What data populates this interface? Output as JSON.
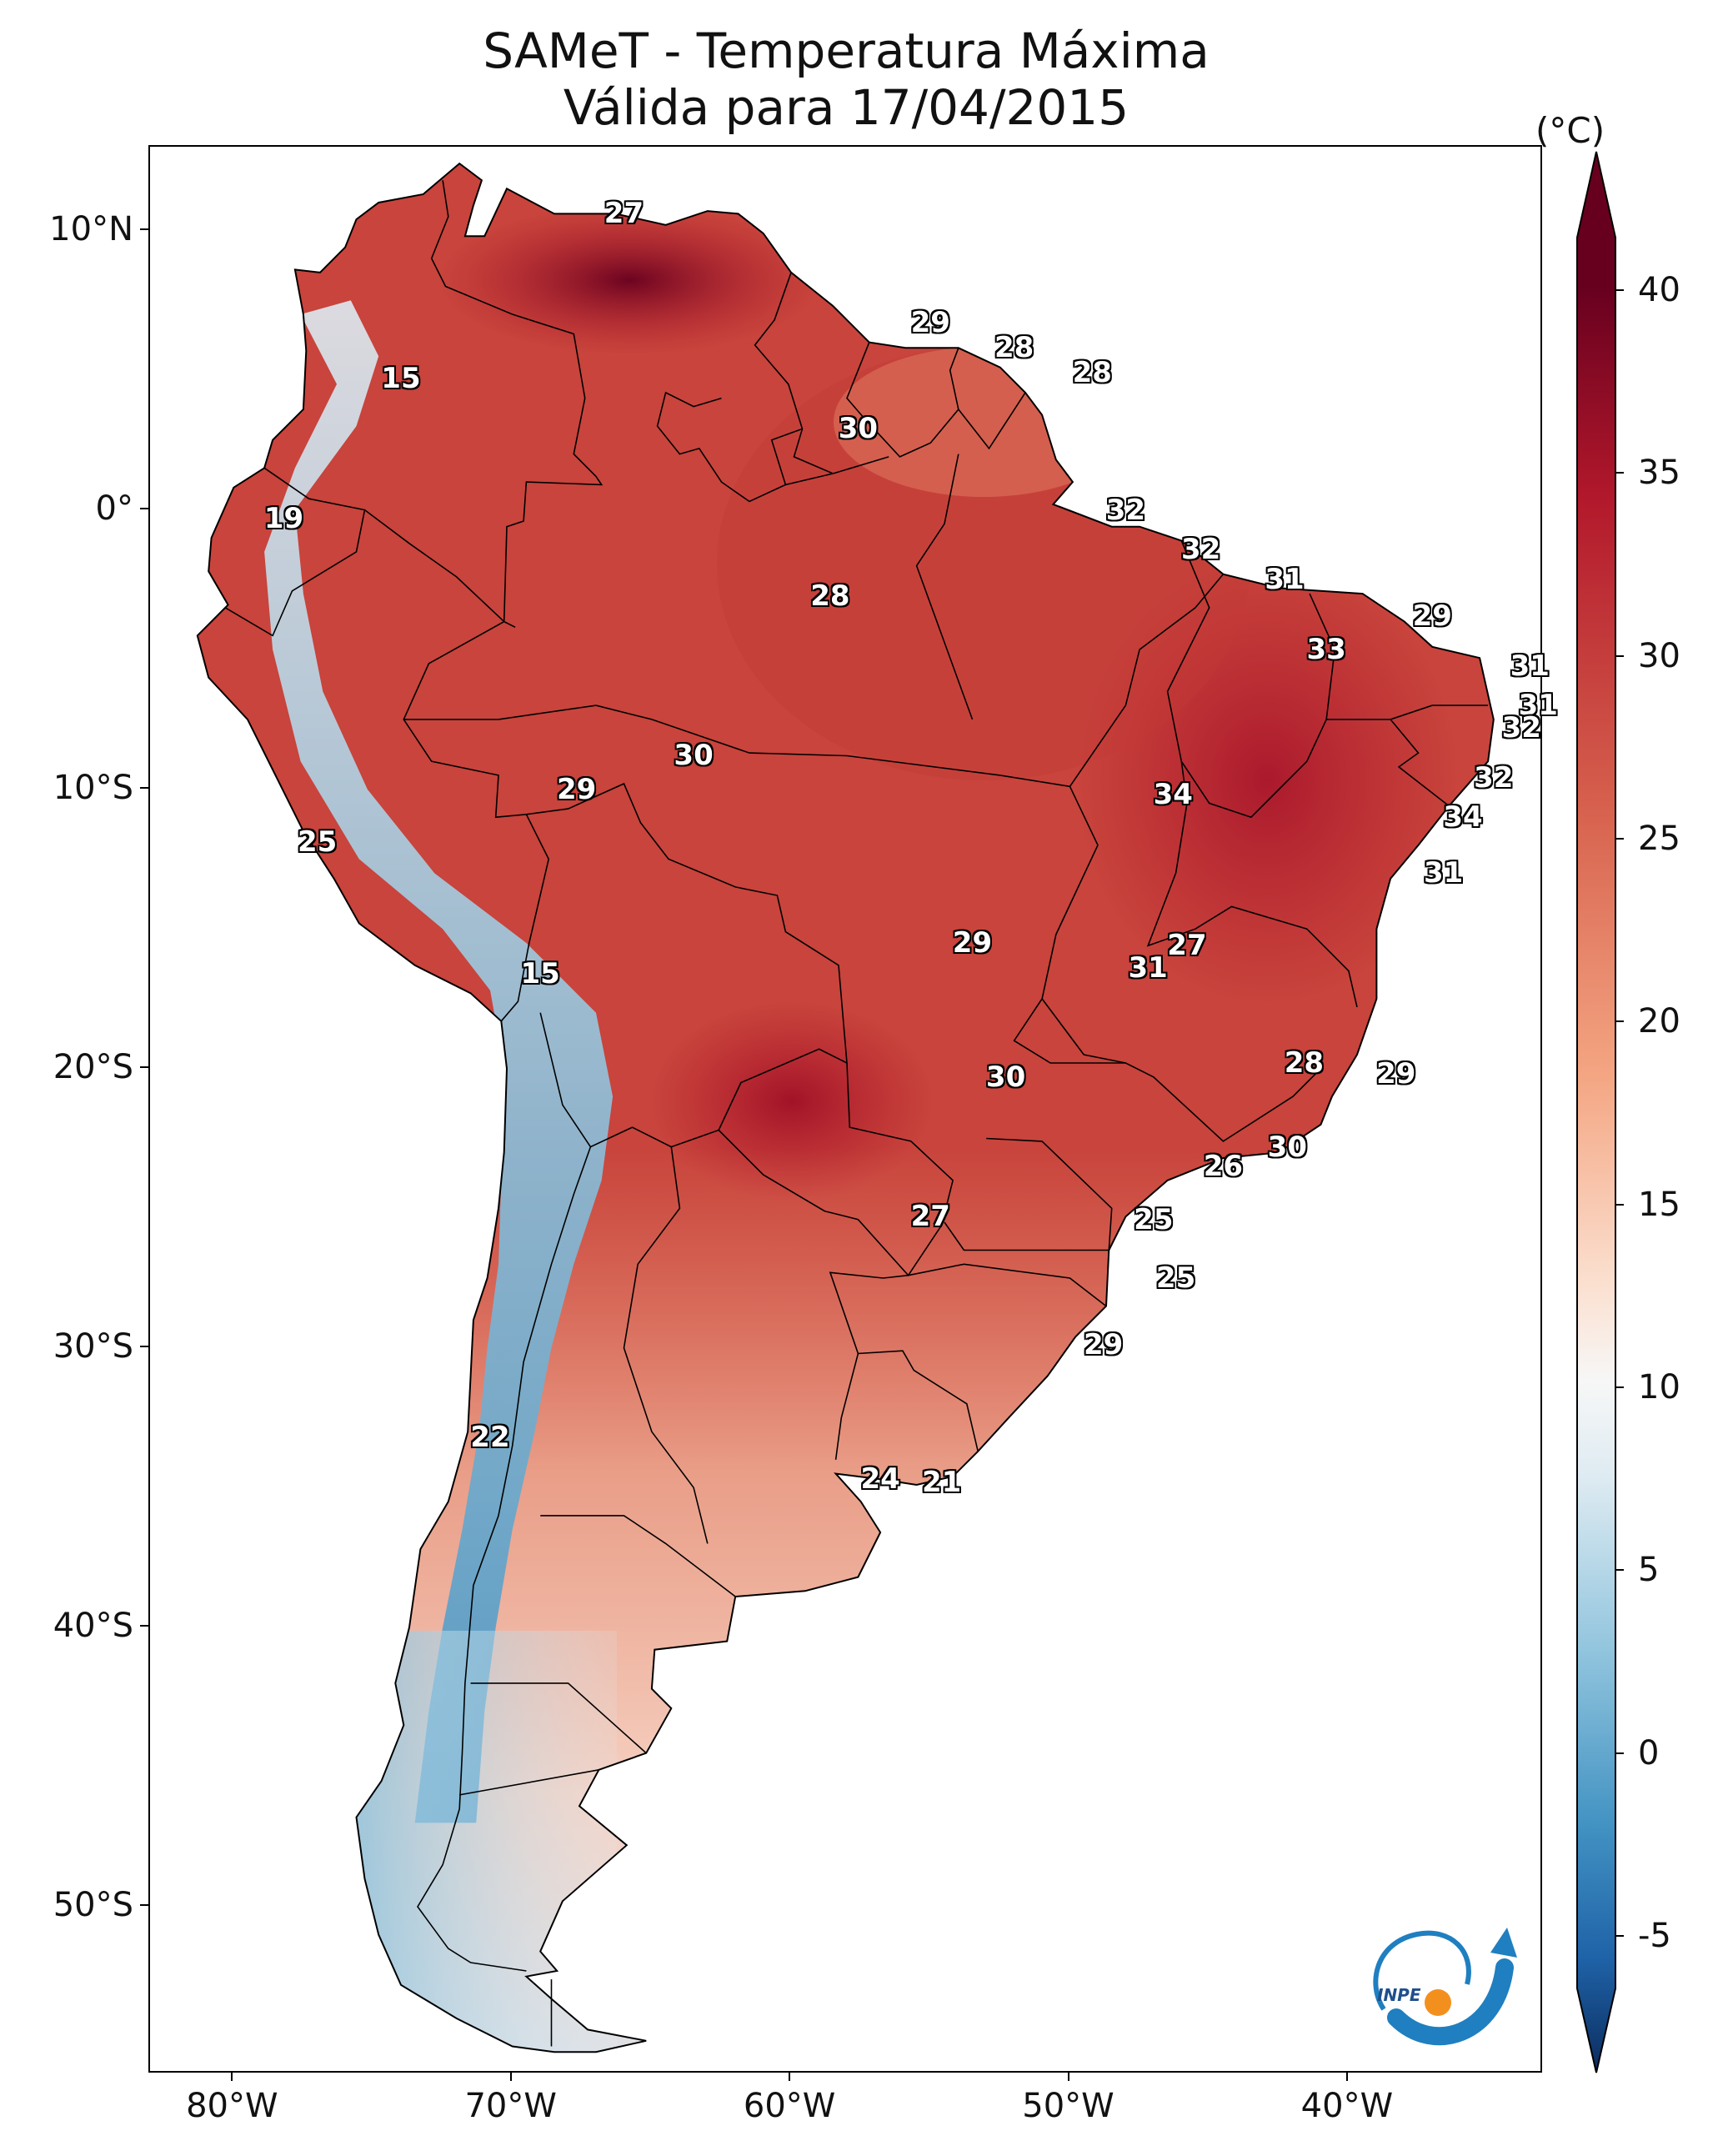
{
  "title": {
    "line1": "SAMeT - Temperatura Máxima",
    "line2": "Válida para 17/04/2015"
  },
  "colorbar": {
    "unit": "(°C)",
    "ticks": [
      "40",
      "35",
      "30",
      "25",
      "20",
      "15",
      "10",
      "5",
      "0",
      "-5"
    ],
    "tick_values": [
      40,
      35,
      30,
      25,
      20,
      15,
      10,
      5,
      0,
      -5
    ],
    "range": [
      -5,
      40
    ],
    "colors": {
      "c_neg5": "#0b2c5e",
      "c_0": "#1f63a8",
      "c_5": "#4393c3",
      "c_10": "#92c5de",
      "c_15": "#deebf2",
      "c_18": "#f7f7f7",
      "c_20": "#fbe0d0",
      "c_25": "#f4a582",
      "c_30": "#d6604d",
      "c_35": "#b2182b",
      "c_40": "#67001f"
    }
  },
  "axes": {
    "lat_labels": [
      "10°N",
      "0°",
      "10°S",
      "20°S",
      "30°S",
      "40°S",
      "50°S"
    ],
    "lat_values": [
      10,
      0,
      -10,
      -20,
      -30,
      -40,
      -50
    ],
    "lon_labels": [
      "80°W",
      "70°W",
      "60°W",
      "50°W",
      "40°W"
    ],
    "lon_values": [
      -80,
      -70,
      -60,
      -50,
      -40
    ],
    "lon_range": [
      -83,
      -33
    ],
    "lat_range": [
      -56,
      13
    ]
  },
  "station_values": [
    {
      "label": "27",
      "lon": -66.0,
      "lat": 10.6
    },
    {
      "label": "29",
      "lon": -55.0,
      "lat": 6.7
    },
    {
      "label": "28",
      "lon": -52.0,
      "lat": 5.8
    },
    {
      "label": "28",
      "lon": -49.2,
      "lat": 4.9
    },
    {
      "label": "15",
      "lon": -74.0,
      "lat": 4.7
    },
    {
      "label": "30",
      "lon": -57.6,
      "lat": 2.9
    },
    {
      "label": "32",
      "lon": -48.0,
      "lat": 0.0
    },
    {
      "label": "19",
      "lon": -78.2,
      "lat": -0.3
    },
    {
      "label": "32",
      "lon": -45.3,
      "lat": -1.4
    },
    {
      "label": "31",
      "lon": -42.3,
      "lat": -2.5
    },
    {
      "label": "28",
      "lon": -58.6,
      "lat": -3.1
    },
    {
      "label": "29",
      "lon": -37.0,
      "lat": -3.8
    },
    {
      "label": "33",
      "lon": -40.8,
      "lat": -5.0
    },
    {
      "label": "31",
      "lon": -33.5,
      "lat": -5.6
    },
    {
      "label": "31",
      "lon": -33.2,
      "lat": -7.0
    },
    {
      "label": "32",
      "lon": -33.8,
      "lat": -7.8
    },
    {
      "label": "30",
      "lon": -63.5,
      "lat": -8.8
    },
    {
      "label": "32",
      "lon": -34.8,
      "lat": -9.6
    },
    {
      "label": "29",
      "lon": -67.7,
      "lat": -10.0
    },
    {
      "label": "34",
      "lon": -46.3,
      "lat": -10.2
    },
    {
      "label": "34",
      "lon": -35.9,
      "lat": -11.0
    },
    {
      "label": "25",
      "lon": -77.0,
      "lat": -11.9
    },
    {
      "label": "31",
      "lon": -36.6,
      "lat": -13.0
    },
    {
      "label": "27",
      "lon": -45.8,
      "lat": -15.6
    },
    {
      "label": "29",
      "lon": -53.5,
      "lat": -15.5
    },
    {
      "label": "31",
      "lon": -47.2,
      "lat": -16.4
    },
    {
      "label": "15",
      "lon": -69.0,
      "lat": -16.6
    },
    {
      "label": "28",
      "lon": -41.6,
      "lat": -19.8
    },
    {
      "label": "30",
      "lon": -52.3,
      "lat": -20.3
    },
    {
      "label": "29",
      "lon": -38.3,
      "lat": -20.2
    },
    {
      "label": "30",
      "lon": -42.2,
      "lat": -22.8
    },
    {
      "label": "26",
      "lon": -44.5,
      "lat": -23.5
    },
    {
      "label": "27",
      "lon": -55.0,
      "lat": -25.3
    },
    {
      "label": "25",
      "lon": -47.0,
      "lat": -25.4
    },
    {
      "label": "25",
      "lon": -46.2,
      "lat": -27.5
    },
    {
      "label": "29",
      "lon": -48.8,
      "lat": -29.9
    },
    {
      "label": "22",
      "lon": -70.8,
      "lat": -33.2
    },
    {
      "label": "24",
      "lon": -56.8,
      "lat": -34.7
    },
    {
      "label": "21",
      "lon": -54.6,
      "lat": -34.8
    }
  ]
}
